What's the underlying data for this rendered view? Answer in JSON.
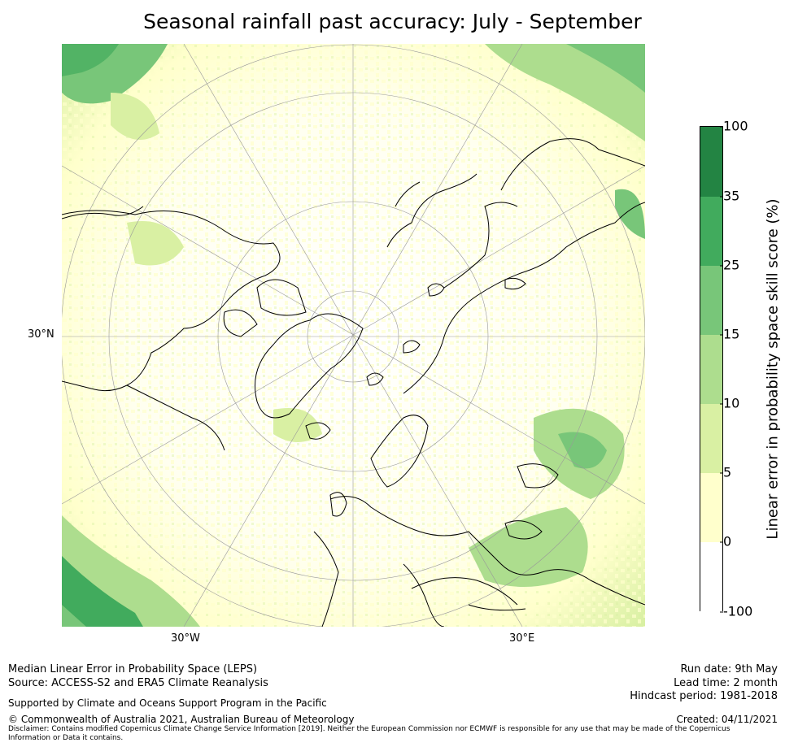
{
  "title": "Seasonal rainfall past accuracy: July - September",
  "map": {
    "projection": "north polar stereographic",
    "labels": {
      "lat_30n": "30°N",
      "lon_30w": "30°W",
      "lon_30e": "30°E"
    }
  },
  "colorbar": {
    "label": "Linear error in probability space skill score (%)",
    "ticks": [
      "100",
      "35",
      "25",
      "15",
      "10",
      "5",
      "0",
      "-100"
    ],
    "colors": [
      "#238443",
      "#41ab5d",
      "#78c679",
      "#addd8e",
      "#d9f0a3",
      "#ffffcc",
      "#ffffff"
    ]
  },
  "footer": {
    "line1": "Median Linear Error in Probability Space (LEPS)",
    "line2": "Source: ACCESS-S2 and ERA5 Climate Reanalysis",
    "support": "Supported by Climate and Oceans Support Program in the Pacific",
    "copyright": "© Commonwealth of Australia 2021, Australian Bureau of Meteorology",
    "disclaimer1": "Disclaimer: Contains modified Copernicus Climate Change Service Information [2019]. Neither the European Commission nor ECMWF is responsible for any use that may be made of the Copernicus",
    "disclaimer2": "Information or Data it contains.",
    "run_date": "Run date: 9th May",
    "lead_time": "Lead time: 2 month",
    "hindcast": "Hindcast period: 1981-2018",
    "created": "Created: 04/11/2021"
  }
}
